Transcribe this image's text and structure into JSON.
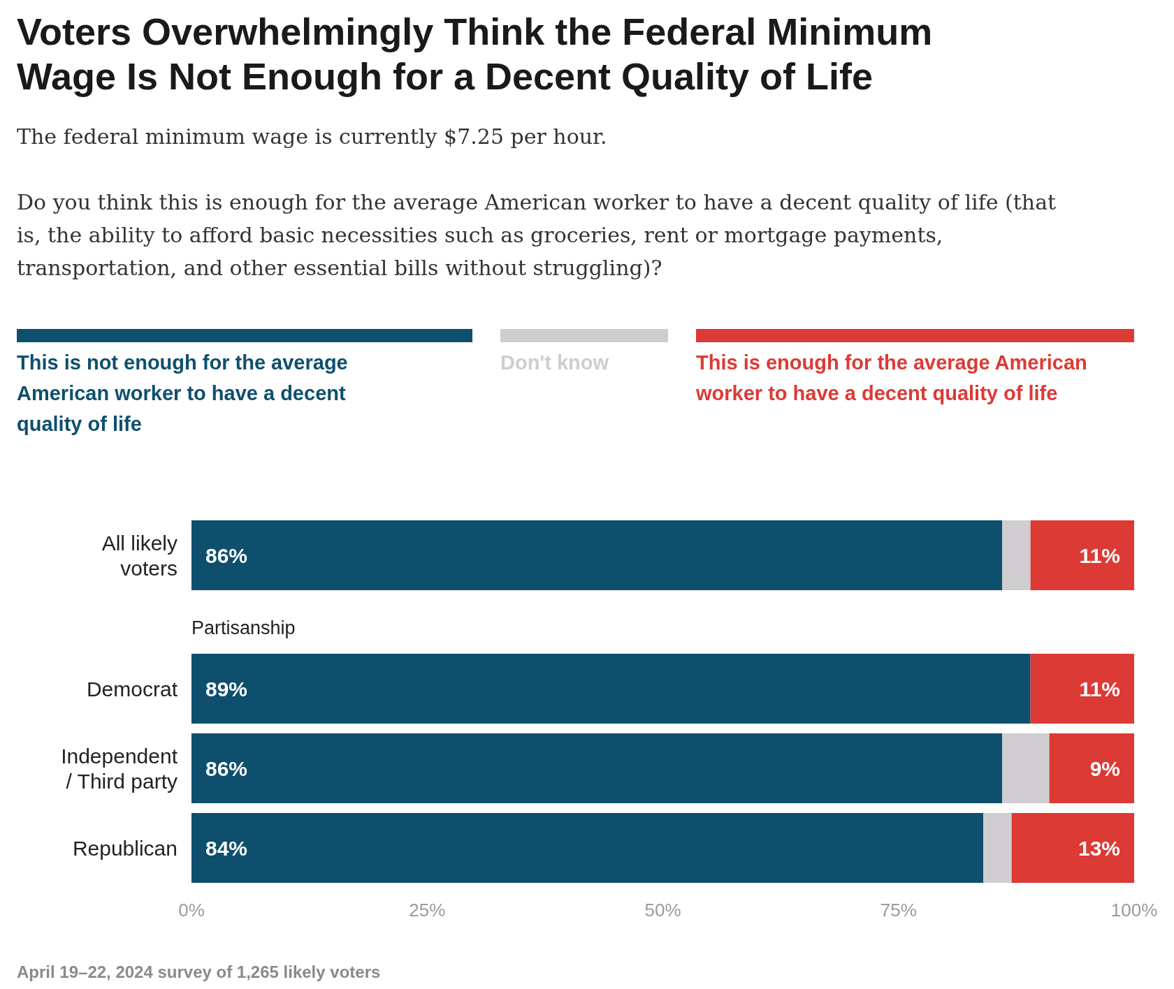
{
  "chart_data": {
    "type": "bar",
    "orientation": "horizontal",
    "stacked": true,
    "title": "Voters Overwhelmingly Think the Federal Minimum Wage Is Not Enough for a Decent Quality of Life",
    "subtitle": "The federal minimum wage is currently $7.25 per hour.\n\nDo you think this is enough for the average American worker to have a decent quality of life (that is, the ability to afford basic necessities such as groceries, rent or mortgage payments, transportation, and other essential bills without struggling)?",
    "categories": [
      "All likely voters",
      "Democrat",
      "Independent / Third party",
      "Republican"
    ],
    "series": [
      {
        "name": "This is not enough for the average American worker to have a decent quality of life",
        "color": "#0e4f6d",
        "values": [
          86,
          89,
          86,
          84
        ],
        "value_labels": [
          "86%",
          "89%",
          "86%",
          "84%"
        ]
      },
      {
        "name": "Don't know",
        "color": "#d0cdd0",
        "values": [
          3,
          0,
          5,
          3
        ],
        "value_labels": [
          null,
          null,
          null,
          null
        ]
      },
      {
        "name": "This is enough for the average American worker to have a decent quality of life",
        "color": "#dc3a35",
        "values": [
          11,
          11,
          9,
          13
        ],
        "value_labels": [
          "11%",
          "11%",
          "9%",
          "13%"
        ]
      }
    ],
    "xlim": [
      0,
      100
    ],
    "xticks": [
      {
        "value": 0,
        "label": "0%"
      },
      {
        "value": 25,
        "label": "25%"
      },
      {
        "value": 50,
        "label": "50%"
      },
      {
        "value": 75,
        "label": "75%"
      },
      {
        "value": 100,
        "label": "100%"
      }
    ],
    "legend": "top",
    "annotations": [
      "Partisanship",
      "April 19–22, 2024 survey of 1,265 likely voters"
    ]
  }
}
